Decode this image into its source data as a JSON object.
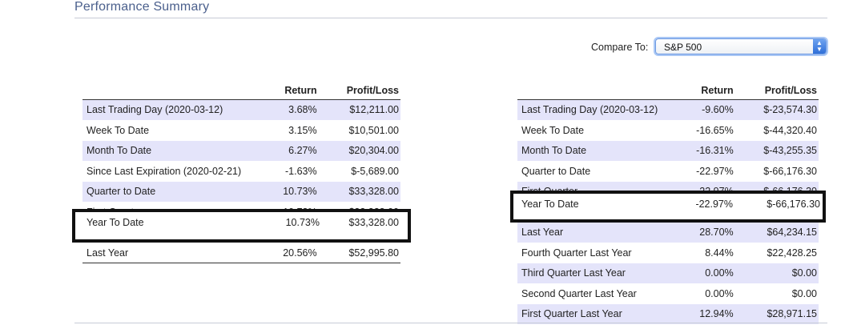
{
  "header": {
    "title": "Performance Summary"
  },
  "compare": {
    "label": "Compare To:",
    "selected": "S&P 500"
  },
  "tables": {
    "left": {
      "headers": {
        "return": "Return",
        "pl": "Profit/Loss"
      },
      "rows": [
        {
          "name": "Last Trading Day (2020-03-12)",
          "ret": "3.68%",
          "pl": "$12,211.00"
        },
        {
          "name": "Week To Date",
          "ret": "3.15%",
          "pl": "$10,501.00"
        },
        {
          "name": "Month To Date",
          "ret": "6.27%",
          "pl": "$20,304.00"
        },
        {
          "name": "Since Last Expiration (2020-02-21)",
          "ret": "-1.63%",
          "pl": "$-5,689.00"
        },
        {
          "name": "Quarter to Date",
          "ret": "10.73%",
          "pl": "$33,328.00"
        },
        {
          "name": "First Quarter",
          "ret": "10.73%",
          "pl": "$33,328.00"
        },
        {
          "name": "Year To Date",
          "ret": "10.73%",
          "pl": "$33,328.00"
        },
        {
          "name": "Last Year",
          "ret": "20.56%",
          "pl": "$52,995.80"
        }
      ]
    },
    "right": {
      "headers": {
        "return": "Return",
        "pl": "Profit/Loss"
      },
      "rows": [
        {
          "name": "Last Trading Day (2020-03-12)",
          "ret": "-9.60%",
          "pl": "$-23,574.30"
        },
        {
          "name": "Week To Date",
          "ret": "-16.65%",
          "pl": "$-44,320.40"
        },
        {
          "name": "Month To Date",
          "ret": "-16.31%",
          "pl": "$-43,255.35"
        },
        {
          "name": "Quarter to Date",
          "ret": "-22.97%",
          "pl": "$-66,176.30"
        },
        {
          "name": "First Quarter",
          "ret": "-22.97%",
          "pl": "$-66,176.30"
        },
        {
          "name": "Year To Date",
          "ret": "-22.97%",
          "pl": "$-66,176.30"
        },
        {
          "name": "Last Year",
          "ret": "28.70%",
          "pl": "$64,234.15"
        },
        {
          "name": "Fourth Quarter Last Year",
          "ret": "8.44%",
          "pl": "$22,428.25"
        },
        {
          "name": "Third Quarter Last Year",
          "ret": "0.00%",
          "pl": "$0.00"
        },
        {
          "name": "Second Quarter Last Year",
          "ret": "0.00%",
          "pl": "$0.00"
        },
        {
          "name": "First Quarter Last Year",
          "ret": "12.94%",
          "pl": "$28,971.15"
        }
      ]
    }
  },
  "icons": {
    "select_arrow": "updown-chevron-icon"
  }
}
